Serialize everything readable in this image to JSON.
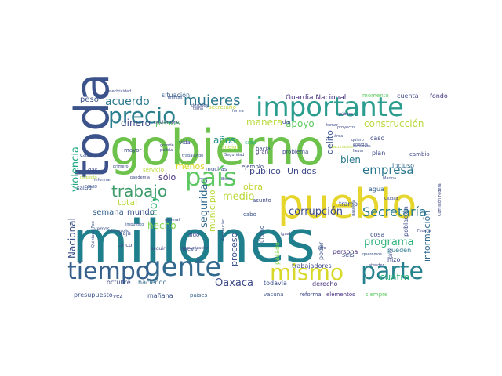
{
  "image": {
    "kind": "word-cloud",
    "background": "#ffffff",
    "palette": [
      "#1f4e8c",
      "#3b528b",
      "#21918c",
      "#2a9d8f",
      "#5ec962",
      "#9ad34f",
      "#b8d93a",
      "#e6d52a",
      "#46327e",
      "#440154"
    ]
  },
  "words": [
    {
      "text": "millones",
      "color": "#1f7f8c"
    },
    {
      "text": "gobierno",
      "color": "#6cc24a"
    },
    {
      "text": "pueblo",
      "color": "#e6d52a"
    },
    {
      "text": "toda",
      "color": "#3b528b"
    },
    {
      "text": "importante",
      "color": "#2a9d8f"
    },
    {
      "text": "gente",
      "color": "#31688e"
    },
    {
      "text": "parte",
      "color": "#26828e"
    },
    {
      "text": "tiempo",
      "color": "#35608d"
    },
    {
      "text": "mismo",
      "color": "#d8d82a"
    },
    {
      "text": "país",
      "color": "#5ec962"
    },
    {
      "text": "precio",
      "color": "#2c7f8e"
    },
    {
      "text": "trabajo",
      "color": "#3e9c6a"
    },
    {
      "text": "mujeres",
      "color": "#2a788e"
    },
    {
      "text": "Secretaría",
      "color": "#2a788e"
    },
    {
      "text": "corrupción",
      "color": "#3e4989"
    },
    {
      "text": "empresa",
      "color": "#2a788e"
    },
    {
      "text": "acuerdo",
      "color": "#2a788e"
    },
    {
      "text": "violencia",
      "color": "#22a884"
    },
    {
      "text": "seguridad",
      "color": "#31688e"
    },
    {
      "text": "Oaxaca",
      "color": "#3e4989"
    },
    {
      "text": "programa",
      "color": "#2fb47c"
    },
    {
      "text": "construcción",
      "color": "#b8d93a"
    },
    {
      "text": "información",
      "color": "#31688e"
    },
    {
      "text": "Guardia Nacional",
      "color": "#46327e"
    },
    {
      "text": "Nacional",
      "color": "#3b528b"
    },
    {
      "text": "público",
      "color": "#3e4989"
    },
    {
      "text": "Unidos",
      "color": "#3e4989"
    },
    {
      "text": "hecho",
      "color": "#84d44b"
    },
    {
      "text": "proceso",
      "color": "#3b528b"
    },
    {
      "text": "medio",
      "color": "#b8d93a"
    },
    {
      "text": "hoy",
      "color": "#35b779"
    },
    {
      "text": "sólo",
      "color": "#46327e"
    },
    {
      "text": "años",
      "color": "#21918c"
    },
    {
      "text": "apoyo",
      "color": "#5ec962"
    },
    {
      "text": "bien",
      "color": "#2a788e"
    },
    {
      "text": "delito",
      "color": "#3b528b"
    },
    {
      "text": "cuatro",
      "color": "#2fb47c"
    },
    {
      "text": "municipio",
      "color": "#b8d93a"
    },
    {
      "text": "semana",
      "color": "#35608d"
    },
    {
      "text": "mundo",
      "color": "#3b528b"
    },
    {
      "text": "dinero",
      "color": "#3e4989"
    },
    {
      "text": "peso",
      "color": "#3b528b"
    },
    {
      "text": "pesos",
      "color": "#5ec962"
    },
    {
      "text": "manera",
      "color": "#b8d93a"
    },
    {
      "text": "obra",
      "color": "#c4d635"
    },
    {
      "text": "total",
      "color": "#b8d93a"
    },
    {
      "text": "menos",
      "color": "#d8d82a"
    },
    {
      "text": "situación",
      "color": "#35608d"
    },
    {
      "text": "cuenta",
      "color": "#3e4989"
    },
    {
      "text": "fondo",
      "color": "#46327e"
    },
    {
      "text": "momento",
      "color": "#5ec962"
    },
    {
      "text": "presupuesto",
      "color": "#3b528b"
    },
    {
      "text": "mañana",
      "color": "#3b528b"
    },
    {
      "text": "países",
      "color": "#35608d"
    },
    {
      "text": "vacuna",
      "color": "#3b528b"
    },
    {
      "text": "reforma",
      "color": "#3e4989"
    },
    {
      "text": "elementos",
      "color": "#46327e"
    },
    {
      "text": "siempre",
      "color": "#5ec962"
    },
    {
      "text": "octubre",
      "color": "#3e4989"
    },
    {
      "text": "haciendo",
      "color": "#31688e"
    },
    {
      "text": "todavía",
      "color": "#3b528b"
    },
    {
      "text": "derecho",
      "color": "#46327e"
    },
    {
      "text": "trabajadores",
      "color": "#3e4989"
    },
    {
      "text": "pasado",
      "color": "#84d44b"
    },
    {
      "text": "poder",
      "color": "#3b528b"
    },
    {
      "text": "persona",
      "color": "#46327e"
    },
    {
      "text": "seis",
      "color": "#3b528b"
    },
    {
      "text": "pueden",
      "color": "#2a788e"
    },
    {
      "text": "hizo",
      "color": "#3e4989"
    },
    {
      "text": "tramo",
      "color": "#3b528b"
    },
    {
      "text": "cosa",
      "color": "#3e4989"
    },
    {
      "text": "agua",
      "color": "#35608d"
    },
    {
      "text": "plan",
      "color": "#3e4989"
    },
    {
      "text": "incluso",
      "color": "#31688e"
    },
    {
      "text": "caso",
      "color": "#3e4989"
    },
    {
      "text": "cabo",
      "color": "#3b528b"
    },
    {
      "text": "asunto",
      "color": "#3e4989"
    },
    {
      "text": "último",
      "color": "#3b528b"
    },
    {
      "text": "sido",
      "color": "#3e4989"
    },
    {
      "text": "nuevo",
      "color": "#3b528b"
    },
    {
      "text": "cinco",
      "color": "#3e4989"
    },
    {
      "text": "baja",
      "color": "#3b528b"
    },
    {
      "text": "vida",
      "color": "#3e4989"
    },
    {
      "text": "mejor",
      "color": "#b8d93a"
    },
    {
      "text": "gran",
      "color": "#46327e"
    },
    {
      "text": "problema",
      "color": "#3e4989"
    },
    {
      "text": "ejemplo",
      "color": "#3e4989"
    },
    {
      "text": "muchas",
      "color": "#3b528b"
    },
    {
      "text": "servicio",
      "color": "#b8d93a"
    },
    {
      "text": "mayor",
      "color": "#3e4989"
    },
    {
      "text": "noviembre",
      "color": "#3e4989"
    },
    {
      "text": "casos",
      "color": "#3b528b"
    },
    {
      "text": "gas",
      "color": "#3e4989"
    },
    {
      "text": "salud",
      "color": "#3b528b"
    },
    {
      "text": "vemos",
      "color": "#3b528b"
    },
    {
      "text": "seguir",
      "color": "#3e4989"
    },
    {
      "text": "dar",
      "color": "#3e4989"
    },
    {
      "text": "hacia",
      "color": "#3b528b"
    },
    {
      "text": "creo",
      "color": "#2fb47c"
    },
    {
      "text": "vez",
      "color": "#3e4989"
    },
    {
      "text": "población",
      "color": "#3e4989"
    },
    {
      "text": "cambio",
      "color": "#3e4989"
    },
    {
      "text": "electricidad",
      "color": "#3e4989"
    },
    {
      "text": "secretario",
      "color": "#c4d635"
    },
    {
      "text": "desarrollo",
      "color": "#3b528b"
    },
    {
      "text": "respecto",
      "color": "#b8d93a"
    },
    {
      "text": "COVID",
      "color": "#3b528b"
    },
    {
      "text": "informar",
      "color": "#3b528b"
    },
    {
      "text": "primero",
      "color": "#3e4989"
    },
    {
      "text": "pandemia",
      "color": "#3e4989"
    },
    {
      "text": "Seguridad",
      "color": "#3b528b"
    },
    {
      "text": "grande",
      "color": "#3e4989"
    },
    {
      "text": "policía",
      "color": "#3e4989"
    },
    {
      "text": "trabajando",
      "color": "#3b528b"
    },
    {
      "text": "Marina",
      "color": "#3b528b"
    },
    {
      "text": "Ciudad",
      "color": "#3e4989"
    },
    {
      "text": "Federal",
      "color": "#3e4989"
    },
    {
      "text": "impuesto",
      "color": "#3b528b"
    },
    {
      "text": "comunicación",
      "color": "#3e4989"
    },
    {
      "text": "Quintana Roo",
      "color": "#3b528b"
    },
    {
      "text": "general",
      "color": "#3e4989"
    },
    {
      "text": "Biden",
      "color": "#3b528b"
    },
    {
      "text": "área",
      "color": "#3e4989"
    },
    {
      "text": "quiero",
      "color": "#3b528b"
    },
    {
      "text": "energía",
      "color": "#3e4989"
    },
    {
      "text": "llevar",
      "color": "#3e4989"
    },
    {
      "text": "centavos",
      "color": "#3b528b"
    },
    {
      "text": "proyecto",
      "color": "#3e4989"
    },
    {
      "text": "plantas",
      "color": "#3b528b"
    },
    {
      "text": "vacunación",
      "color": "#b8d93a"
    },
    {
      "text": "tomar",
      "color": "#3e4989"
    },
    {
      "text": "forma",
      "color": "#3b528b"
    },
    {
      "text": "pública",
      "color": "#3e4989"
    },
    {
      "text": "después",
      "color": "#3b528b"
    },
    {
      "text": "sino",
      "color": "#3e4989"
    },
    {
      "text": "gasolina",
      "color": "#3b528b"
    },
    {
      "text": "atender",
      "color": "#3e4989"
    },
    {
      "text": "litro",
      "color": "#3b528b"
    },
    {
      "text": "igual",
      "color": "#3e4989"
    },
    {
      "text": "distribución",
      "color": "#3b528b"
    },
    {
      "text": "Comisión Federal",
      "color": "#3e4989"
    },
    {
      "text": "queremos",
      "color": "#3b528b"
    },
    {
      "text": "tema",
      "color": "#3e4989"
    }
  ]
}
